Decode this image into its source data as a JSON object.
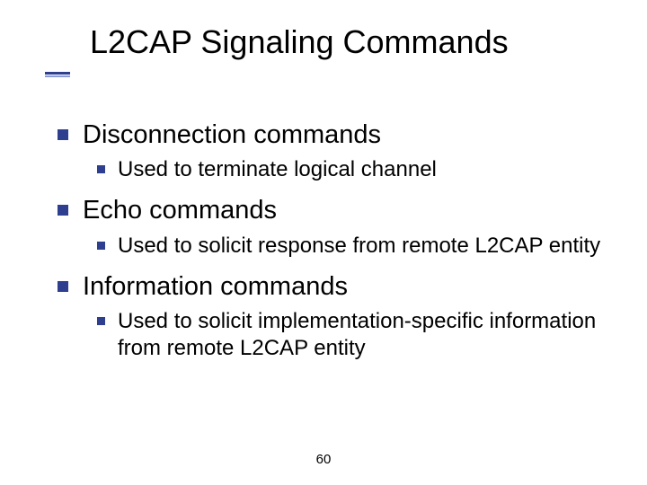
{
  "title": "L2CAP Signaling Commands",
  "page_number": "60",
  "accent_color": "#2e3f8f",
  "items": {
    "a": {
      "label": "Disconnection commands",
      "sub": "Used to terminate logical channel"
    },
    "b": {
      "label": "Echo commands",
      "sub": "Used to solicit response from remote L2CAP entity"
    },
    "c": {
      "label": "Information commands",
      "sub": "Used to solicit implementation-specific information from remote L2CAP entity"
    }
  }
}
